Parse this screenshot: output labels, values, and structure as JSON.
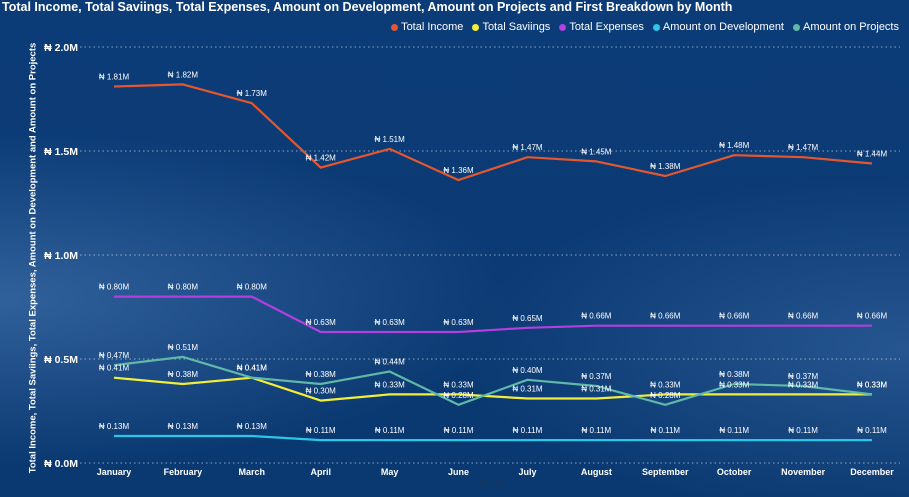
{
  "chart_data": {
    "type": "line",
    "title": "Total Income, Total Saviings, Total Expenses, Amount on Development, Amount on Projects and First Breakdown by Month",
    "xlabel": "Month",
    "ylabel": "Total Income, Total Saviings, Total Expenses, Amount on Development and Amount on Projects",
    "categories": [
      "January",
      "February",
      "March",
      "April",
      "May",
      "June",
      "July",
      "August",
      "September",
      "October",
      "November",
      "December"
    ],
    "ylim": [
      0,
      2.0
    ],
    "yticks": [
      {
        "value": 0.0,
        "label": "₦ 0.0M"
      },
      {
        "value": 0.5,
        "label": "₦ 0.5M"
      },
      {
        "value": 1.0,
        "label": "₦ 1.0M"
      },
      {
        "value": 1.5,
        "label": "₦ 1.5M"
      },
      {
        "value": 2.0,
        "label": "₦ 2.0M"
      }
    ],
    "grid": true,
    "legend_position": "top-right",
    "series": [
      {
        "name": "Total Income",
        "color": "#e4572e",
        "values": [
          1.81,
          1.82,
          1.73,
          1.42,
          1.51,
          1.36,
          1.47,
          1.45,
          1.38,
          1.48,
          1.47,
          1.44
        ],
        "labels": [
          "₦ 1.81M",
          "₦ 1.82M",
          "₦ 1.73M",
          "₦ 1.42M",
          "₦ 1.51M",
          "₦ 1.36M",
          "₦ 1.47M",
          "₦ 1.45M",
          "₦ 1.38M",
          "₦ 1.48M",
          "₦ 1.47M",
          "₦ 1.44M"
        ]
      },
      {
        "name": "Total Saviings",
        "color": "#f2ee3a",
        "values": [
          0.41,
          0.38,
          0.41,
          0.3,
          0.33,
          0.33,
          0.31,
          0.31,
          0.33,
          0.33,
          0.33,
          0.33
        ],
        "labels": [
          "₦ 0.41M",
          "₦ 0.38M",
          "₦ 0.41M",
          "₦ 0.30M",
          "₦ 0.33M",
          "₦ 0.33M",
          "₦ 0.31M",
          "₦ 0.31M",
          "₦ 0.33M",
          "₦ 0.33M",
          "₦ 0.33M",
          "₦ 0.33M"
        ]
      },
      {
        "name": "Total Expenses",
        "color": "#b43ee0",
        "values": [
          0.8,
          0.8,
          0.8,
          0.63,
          0.63,
          0.63,
          0.65,
          0.66,
          0.66,
          0.66,
          0.66,
          0.66
        ],
        "labels": [
          "₦ 0.80M",
          "₦ 0.80M",
          "₦ 0.80M",
          "₦ 0.63M",
          "₦ 0.63M",
          "₦ 0.63M",
          "₦ 0.65M",
          "₦ 0.66M",
          "₦ 0.66M",
          "₦ 0.66M",
          "₦ 0.66M",
          "₦ 0.66M"
        ]
      },
      {
        "name": "Amount on Development",
        "color": "#29c7e8",
        "values": [
          0.13,
          0.13,
          0.13,
          0.11,
          0.11,
          0.11,
          0.11,
          0.11,
          0.11,
          0.11,
          0.11,
          0.11
        ],
        "labels": [
          "₦ 0.13M",
          "₦ 0.13M",
          "₦ 0.13M",
          "₦ 0.11M",
          "₦ 0.11M",
          "₦ 0.11M",
          "₦ 0.11M",
          "₦ 0.11M",
          "₦ 0.11M",
          "₦ 0.11M",
          "₦ 0.11M",
          "₦ 0.11M"
        ]
      },
      {
        "name": "Amount on Projects",
        "color": "#5fb8a8",
        "values": [
          0.47,
          0.51,
          0.41,
          0.38,
          0.44,
          0.28,
          0.4,
          0.37,
          0.28,
          0.38,
          0.37,
          0.33
        ],
        "labels": [
          "₦ 0.47M",
          "₦ 0.51M",
          "₦ 0.41M",
          "₦ 0.38M",
          "₦ 0.44M",
          "₦ 0.28M",
          "₦ 0.40M",
          "₦ 0.37M",
          "₦ 0.28M",
          "₦ 0.38M",
          "₦ 0.37M",
          "₦ 0.33M"
        ]
      }
    ]
  }
}
